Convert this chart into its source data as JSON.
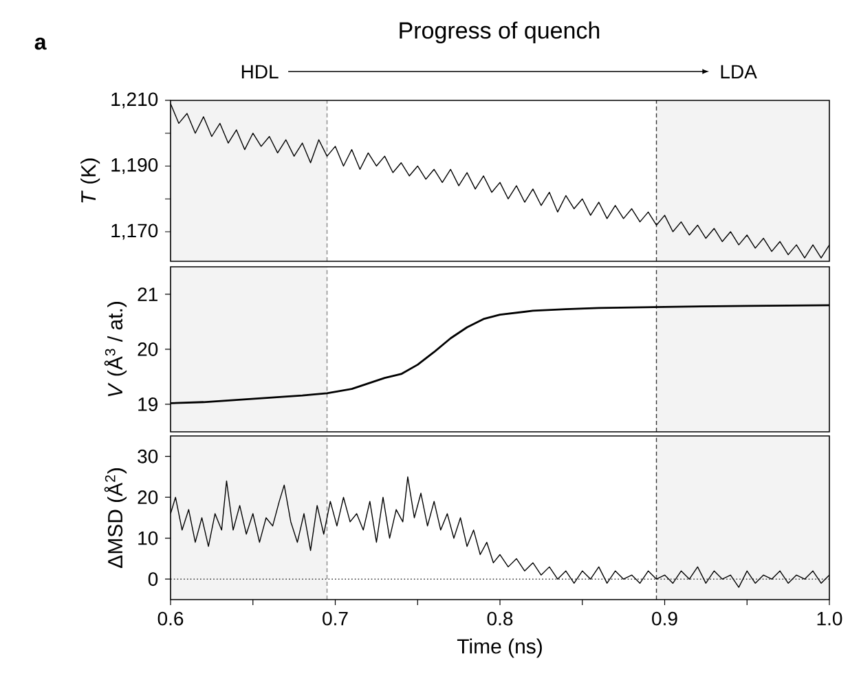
{
  "chart_data": [
    {
      "type": "line",
      "title": "Progress of quench",
      "annotations": [
        "a",
        "HDL",
        "LDA"
      ],
      "ylabel": "*T* (K)",
      "tick_labels": "y",
      "xlim": [
        0.6,
        1.0
      ],
      "ylim": [
        1161,
        1210
      ],
      "yticks": [
        {
          "value": 1210,
          "label": "1,210"
        },
        {
          "value": 1200,
          "label": null
        },
        {
          "value": 1190,
          "label": "1,190"
        },
        {
          "value": 1180,
          "label": null
        },
        {
          "value": 1170,
          "label": "1,170"
        }
      ],
      "bands": [
        {
          "axis": "x",
          "from": 0.6,
          "to": 0.695,
          "color": "#f3f3f3"
        },
        {
          "axis": "x",
          "from": 0.895,
          "to": 1.0,
          "color": "#f3f3f3"
        }
      ],
      "ref_lines": [
        {
          "axis": "x",
          "value": 0.695,
          "color": "#888888",
          "line_style": "dashed"
        },
        {
          "axis": "x",
          "value": 0.895,
          "color": "#333333",
          "line_style": "dashed"
        }
      ],
      "series": [
        {
          "color": "#000000",
          "x": [
            0.6,
            0.605,
            0.61,
            0.615,
            0.62,
            0.625,
            0.63,
            0.635,
            0.64,
            0.645,
            0.65,
            0.655,
            0.66,
            0.665,
            0.67,
            0.675,
            0.68,
            0.685,
            0.69,
            0.695,
            0.7,
            0.705,
            0.71,
            0.715,
            0.72,
            0.725,
            0.73,
            0.735,
            0.74,
            0.745,
            0.75,
            0.755,
            0.76,
            0.765,
            0.77,
            0.775,
            0.78,
            0.785,
            0.79,
            0.795,
            0.8,
            0.805,
            0.81,
            0.815,
            0.82,
            0.825,
            0.83,
            0.835,
            0.84,
            0.845,
            0.85,
            0.855,
            0.86,
            0.865,
            0.87,
            0.875,
            0.88,
            0.885,
            0.89,
            0.895,
            0.9,
            0.905,
            0.91,
            0.915,
            0.92,
            0.925,
            0.93,
            0.935,
            0.94,
            0.945,
            0.95,
            0.955,
            0.96,
            0.965,
            0.97,
            0.975,
            0.98,
            0.985,
            0.99,
            0.995,
            1.0
          ],
          "values": [
            1209,
            1203,
            1206,
            1200,
            1205,
            1199,
            1203,
            1197,
            1201,
            1195,
            1200,
            1196,
            1199,
            1194,
            1198,
            1193,
            1197,
            1191,
            1198,
            1193,
            1196,
            1190,
            1195,
            1189,
            1194,
            1190,
            1193,
            1188,
            1191,
            1187,
            1190,
            1186,
            1189,
            1185,
            1189,
            1184,
            1188,
            1183,
            1187,
            1182,
            1185,
            1180,
            1184,
            1179,
            1183,
            1178,
            1182,
            1176,
            1181,
            1177,
            1180,
            1175,
            1179,
            1174,
            1178,
            1174,
            1177,
            1173,
            1176,
            1172,
            1175,
            1170,
            1173,
            1169,
            1172,
            1168,
            1171,
            1167,
            1170,
            1166,
            1169,
            1165,
            1168,
            1164,
            1167,
            1163,
            1166,
            1162,
            1166,
            1162,
            1166
          ]
        }
      ]
    },
    {
      "type": "line",
      "ylabel": "*V* (Å$^{3}$ / at.)",
      "tick_labels": "y",
      "xlim": [
        0.6,
        1.0
      ],
      "ylim": [
        18.5,
        21.5
      ],
      "yticks": [
        19,
        20,
        21
      ],
      "bands": [
        {
          "axis": "x",
          "from": 0.6,
          "to": 0.695,
          "color": "#f3f3f3"
        },
        {
          "axis": "x",
          "from": 0.895,
          "to": 1.0,
          "color": "#f3f3f3"
        }
      ],
      "ref_lines": [
        {
          "axis": "x",
          "value": 0.695,
          "color": "#888888",
          "line_style": "dashed"
        },
        {
          "axis": "x",
          "value": 0.895,
          "color": "#333333",
          "line_style": "dashed"
        }
      ],
      "series": [
        {
          "color": "#000000",
          "x": [
            0.6,
            0.62,
            0.64,
            0.66,
            0.68,
            0.695,
            0.71,
            0.72,
            0.73,
            0.74,
            0.75,
            0.76,
            0.77,
            0.78,
            0.79,
            0.8,
            0.82,
            0.84,
            0.86,
            0.88,
            0.9,
            0.95,
            1.0
          ],
          "values": [
            19.02,
            19.04,
            19.08,
            19.12,
            19.16,
            19.2,
            19.28,
            19.38,
            19.48,
            19.55,
            19.72,
            19.95,
            20.2,
            20.4,
            20.55,
            20.63,
            20.7,
            20.73,
            20.75,
            20.76,
            20.77,
            20.79,
            20.8
          ]
        }
      ]
    },
    {
      "type": "line",
      "ylabel": "ΔMSD (Å$^{2}$)",
      "xlabel": "Time (ns)",
      "xlim": [
        0.6,
        1.0
      ],
      "ylim": [
        -5,
        35
      ],
      "yticks": [
        0,
        10,
        20,
        30
      ],
      "xticks": [
        {
          "value": 0.6,
          "label": "0.6"
        },
        {
          "value": 0.65,
          "label": null
        },
        {
          "value": 0.7,
          "label": "0.7"
        },
        {
          "value": 0.75,
          "label": null
        },
        {
          "value": 0.8,
          "label": "0.8"
        },
        {
          "value": 0.85,
          "label": null
        },
        {
          "value": 0.9,
          "label": "0.9"
        },
        {
          "value": 0.95,
          "label": null
        },
        {
          "value": 1.0,
          "label": "1.0"
        }
      ],
      "bands": [
        {
          "axis": "x",
          "from": 0.6,
          "to": 0.695,
          "color": "#f3f3f3"
        },
        {
          "axis": "x",
          "from": 0.895,
          "to": 1.0,
          "color": "#f3f3f3"
        }
      ],
      "ref_lines": [
        {
          "axis": "x",
          "value": 0.695,
          "color": "#888888",
          "line_style": "dashed"
        },
        {
          "axis": "x",
          "value": 0.895,
          "color": "#333333",
          "line_style": "dashed"
        },
        {
          "axis": "y",
          "value": 0,
          "color": "#333333",
          "line_style": "dotted"
        }
      ],
      "series": [
        {
          "color": "#000000",
          "x": [
            0.6,
            0.603,
            0.607,
            0.611,
            0.615,
            0.619,
            0.623,
            0.627,
            0.631,
            0.634,
            0.638,
            0.642,
            0.646,
            0.65,
            0.654,
            0.658,
            0.662,
            0.666,
            0.669,
            0.673,
            0.677,
            0.681,
            0.685,
            0.689,
            0.693,
            0.697,
            0.701,
            0.705,
            0.709,
            0.713,
            0.717,
            0.721,
            0.725,
            0.729,
            0.733,
            0.737,
            0.741,
            0.744,
            0.748,
            0.752,
            0.756,
            0.76,
            0.764,
            0.768,
            0.772,
            0.776,
            0.78,
            0.784,
            0.788,
            0.792,
            0.796,
            0.8,
            0.805,
            0.81,
            0.815,
            0.82,
            0.825,
            0.83,
            0.835,
            0.84,
            0.845,
            0.85,
            0.855,
            0.86,
            0.865,
            0.87,
            0.875,
            0.88,
            0.885,
            0.89,
            0.895,
            0.9,
            0.905,
            0.91,
            0.915,
            0.92,
            0.925,
            0.93,
            0.935,
            0.94,
            0.945,
            0.95,
            0.955,
            0.96,
            0.965,
            0.97,
            0.975,
            0.98,
            0.985,
            0.99,
            0.995,
            1.0
          ],
          "values": [
            16,
            20,
            12,
            17,
            9,
            15,
            8,
            16,
            12,
            24,
            12,
            18,
            11,
            16,
            9,
            15,
            13,
            19,
            23,
            14,
            9,
            16,
            7,
            18,
            11,
            19,
            13,
            20,
            14,
            16,
            12,
            19,
            9,
            20,
            10,
            17,
            14,
            25,
            15,
            21,
            13,
            19,
            12,
            16,
            10,
            15,
            8,
            12,
            6,
            9,
            4,
            6,
            3,
            5,
            2,
            4,
            1,
            3,
            0,
            2,
            -1,
            2,
            0,
            3,
            -1,
            2,
            0,
            1,
            -1,
            2,
            0,
            1,
            -1,
            2,
            0,
            3,
            -1,
            2,
            0,
            1,
            -2,
            2,
            -1,
            1,
            0,
            2,
            -1,
            1,
            0,
            2,
            -1,
            1
          ]
        }
      ]
    }
  ]
}
